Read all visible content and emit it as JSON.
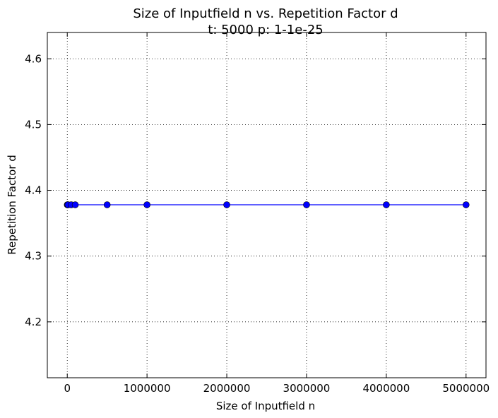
{
  "chart_data": {
    "type": "line",
    "title": "Size of Inputfield n  vs. Repetition Factor d",
    "subtitle": "t: 5000 p: 1-1e-25",
    "xlabel": "Size of Inputfield n",
    "ylabel": "Repetition Factor d",
    "xlim": [
      -250000,
      5250000
    ],
    "ylim": [
      4.115,
      4.64
    ],
    "xticks": [
      0,
      1000000,
      2000000,
      3000000,
      4000000,
      5000000
    ],
    "xtick_labels": [
      "0",
      "1000000",
      "2000000",
      "3000000",
      "4000000",
      "5000000"
    ],
    "yticks": [
      4.2,
      4.3,
      4.4,
      4.5,
      4.6
    ],
    "ytick_labels": [
      "4.2",
      "4.3",
      "4.4",
      "4.5",
      "4.6"
    ],
    "grid": true,
    "legend": false,
    "series": [
      {
        "color": "#0000ff",
        "marker": "circle",
        "x": [
          1000,
          5000,
          10000,
          50000,
          100000,
          500000,
          1000000,
          2000000,
          3000000,
          4000000,
          5000000
        ],
        "y": [
          4.378,
          4.378,
          4.378,
          4.378,
          4.378,
          4.378,
          4.378,
          4.378,
          4.378,
          4.378,
          4.378
        ]
      }
    ]
  }
}
